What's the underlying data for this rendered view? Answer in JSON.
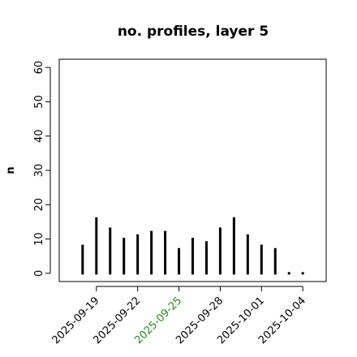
{
  "chart_data": {
    "type": "bar",
    "title": "no. profiles, layer 5",
    "y_label": "n",
    "x": [
      "2025-09-18",
      "2025-09-19",
      "2025-09-20",
      "2025-09-21",
      "2025-09-22",
      "2025-09-23",
      "2025-09-24",
      "2025-09-25",
      "2025-09-26",
      "2025-09-27",
      "2025-09-28",
      "2025-09-29",
      "2025-09-30",
      "2025-10-01",
      "2025-10-02",
      "2025-10-03",
      "2025-10-04"
    ],
    "values": [
      8,
      16,
      13,
      10,
      11,
      12,
      12,
      7,
      10,
      9,
      13,
      16,
      11,
      8,
      7,
      0,
      0
    ],
    "color": "#000000",
    "ylim": [
      -2.4,
      62.4
    ],
    "yticks": [
      0,
      10,
      20,
      30,
      40,
      50,
      60
    ],
    "xticks": [
      "2025-09-19",
      "2025-09-22",
      "2025-09-25",
      "2025-09-28",
      "2025-10-01",
      "2025-10-04"
    ],
    "xtick_colors": [
      "#000000",
      "#000000",
      "#228b22",
      "#000000",
      "#000000",
      "#000000"
    ]
  }
}
